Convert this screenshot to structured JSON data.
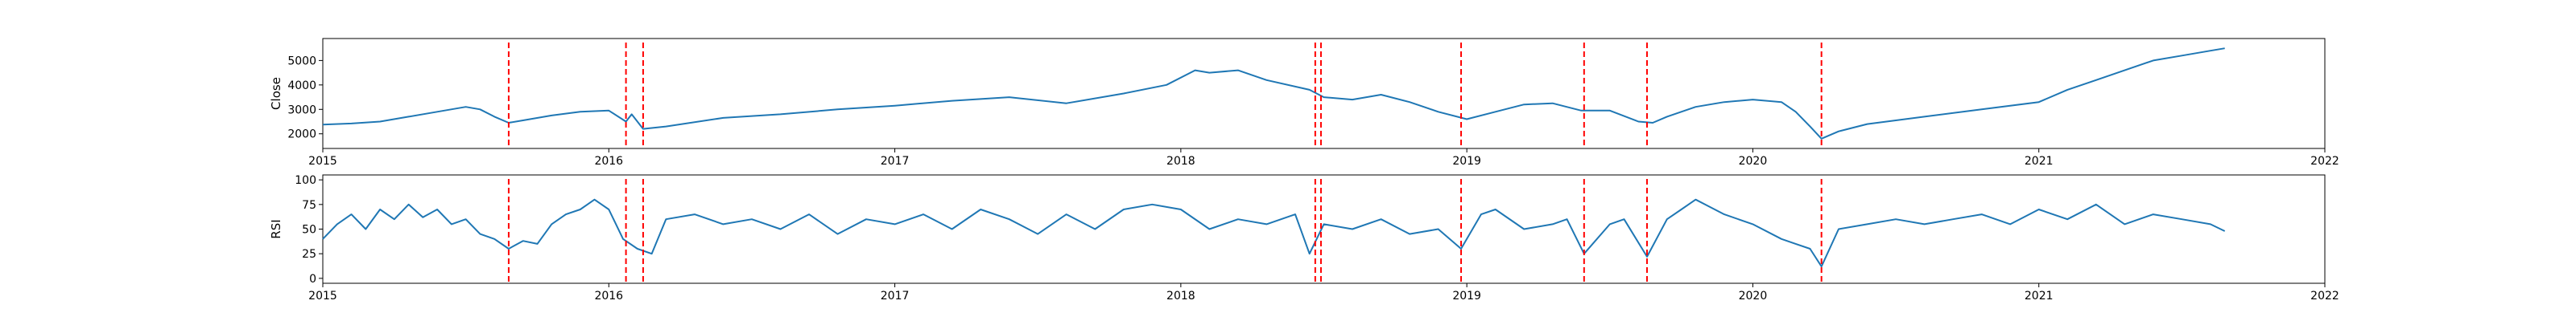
{
  "chart_data": [
    {
      "type": "line",
      "ylabel": "Close",
      "xlabel": "",
      "xlim": [
        2015.0,
        2022.0
      ],
      "ylim": [
        1400,
        5900
      ],
      "x_ticks": [
        "2015",
        "2016",
        "2017",
        "2018",
        "2019",
        "2020",
        "2021",
        "2022"
      ],
      "y_ticks": [
        "2000",
        "3000",
        "4000",
        "5000"
      ],
      "y_tick_values": [
        2000,
        3000,
        4000,
        5000
      ],
      "grid": false,
      "line_color": "#1f77b4",
      "series": [
        {
          "x": [
            2015.0,
            2015.1,
            2015.2,
            2015.3,
            2015.4,
            2015.5,
            2015.55,
            2015.6,
            2015.65,
            2015.7,
            2015.8,
            2015.9,
            2016.0,
            2016.06,
            2016.08,
            2016.12,
            2016.2,
            2016.4,
            2016.6,
            2016.8,
            2017.0,
            2017.2,
            2017.4,
            2017.6,
            2017.8,
            2017.95,
            2018.05,
            2018.1,
            2018.2,
            2018.3,
            2018.45,
            2018.5,
            2018.6,
            2018.7,
            2018.8,
            2018.9,
            2019.0,
            2019.1,
            2019.2,
            2019.3,
            2019.4,
            2019.5,
            2019.6,
            2019.65,
            2019.7,
            2019.8,
            2019.9,
            2020.0,
            2020.1,
            2020.15,
            2020.2,
            2020.24,
            2020.3,
            2020.4,
            2020.6,
            2020.8,
            2021.0,
            2021.1,
            2021.2,
            2021.3,
            2021.4,
            2021.5,
            2021.6,
            2021.65
          ],
          "values": [
            2380,
            2420,
            2500,
            2700,
            2900,
            3100,
            3000,
            2700,
            2450,
            2550,
            2750,
            2900,
            2950,
            2500,
            2800,
            2200,
            2300,
            2650,
            2800,
            3000,
            3150,
            3350,
            3500,
            3250,
            3650,
            4000,
            4600,
            4500,
            4600,
            4200,
            3800,
            3500,
            3400,
            3600,
            3300,
            2900,
            2600,
            2900,
            3200,
            3250,
            2950,
            2950,
            2500,
            2450,
            2700,
            3100,
            3300,
            3400,
            3300,
            2900,
            2300,
            1800,
            2100,
            2400,
            2700,
            3000,
            3300,
            3800,
            4200,
            4600,
            5000,
            5200,
            5400,
            5500
          ]
        }
      ],
      "events_x": [
        2015.65,
        2016.06,
        2016.12,
        2018.47,
        2018.49,
        2018.98,
        2019.41,
        2019.63,
        2020.24
      ],
      "event_color": "#ff0000"
    },
    {
      "type": "line",
      "ylabel": "RSI",
      "xlabel": "",
      "xlim": [
        2015.0,
        2022.0
      ],
      "ylim": [
        -5,
        105
      ],
      "x_ticks": [
        "2015",
        "2016",
        "2017",
        "2018",
        "2019",
        "2020",
        "2021",
        "2022"
      ],
      "y_ticks": [
        "0",
        "25",
        "50",
        "75",
        "100"
      ],
      "y_tick_values": [
        0,
        25,
        50,
        75,
        100
      ],
      "grid": false,
      "line_color": "#1f77b4",
      "series": [
        {
          "x": [
            2015.0,
            2015.05,
            2015.1,
            2015.15,
            2015.2,
            2015.25,
            2015.3,
            2015.35,
            2015.4,
            2015.45,
            2015.5,
            2015.55,
            2015.6,
            2015.65,
            2015.7,
            2015.75,
            2015.8,
            2015.85,
            2015.9,
            2015.95,
            2016.0,
            2016.05,
            2016.1,
            2016.15,
            2016.2,
            2016.3,
            2016.4,
            2016.5,
            2016.6,
            2016.7,
            2016.8,
            2016.9,
            2017.0,
            2017.1,
            2017.2,
            2017.3,
            2017.4,
            2017.5,
            2017.6,
            2017.7,
            2017.8,
            2017.9,
            2018.0,
            2018.1,
            2018.2,
            2018.3,
            2018.4,
            2018.45,
            2018.5,
            2018.6,
            2018.7,
            2018.8,
            2018.9,
            2018.98,
            2019.05,
            2019.1,
            2019.2,
            2019.3,
            2019.35,
            2019.41,
            2019.5,
            2019.55,
            2019.63,
            2019.7,
            2019.75,
            2019.8,
            2019.9,
            2020.0,
            2020.1,
            2020.15,
            2020.2,
            2020.24,
            2020.3,
            2020.4,
            2020.5,
            2020.6,
            2020.7,
            2020.8,
            2020.9,
            2021.0,
            2021.1,
            2021.2,
            2021.3,
            2021.4,
            2021.5,
            2021.6,
            2021.65
          ],
          "values": [
            40,
            55,
            65,
            50,
            70,
            60,
            75,
            62,
            70,
            55,
            60,
            45,
            40,
            30,
            38,
            35,
            55,
            65,
            70,
            80,
            70,
            40,
            30,
            25,
            60,
            65,
            55,
            60,
            50,
            65,
            45,
            60,
            55,
            65,
            50,
            70,
            60,
            45,
            65,
            50,
            70,
            75,
            70,
            50,
            60,
            55,
            65,
            25,
            55,
            50,
            60,
            45,
            50,
            30,
            65,
            70,
            50,
            55,
            60,
            25,
            55,
            60,
            22,
            60,
            70,
            80,
            65,
            55,
            40,
            35,
            30,
            12,
            50,
            55,
            60,
            55,
            60,
            65,
            55,
            70,
            60,
            75,
            55,
            65,
            60,
            55,
            48
          ]
        }
      ],
      "events_x": [
        2015.65,
        2016.06,
        2016.12,
        2018.47,
        2018.49,
        2018.98,
        2019.41,
        2019.63,
        2020.24
      ],
      "event_color": "#ff0000"
    }
  ]
}
